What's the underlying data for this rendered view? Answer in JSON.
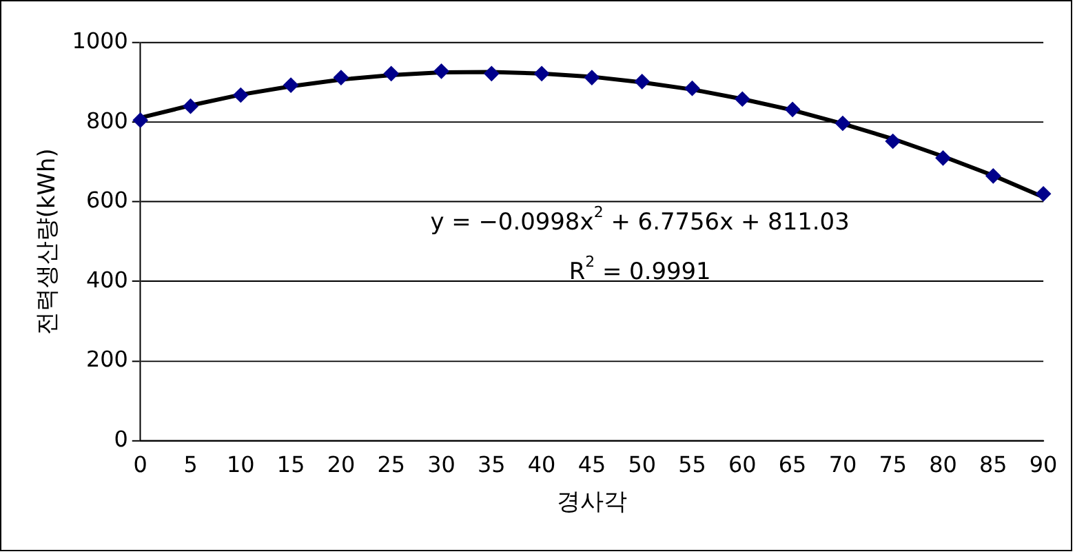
{
  "chart_data": {
    "type": "scatter",
    "ylabel": "전력생산량(kWh)",
    "xlabel": "경사각",
    "categories": [
      "0",
      "5",
      "10",
      "15",
      "20",
      "25",
      "30",
      "35",
      "40",
      "45",
      "50",
      "55",
      "60",
      "65",
      "70",
      "75",
      "80",
      "85",
      "90"
    ],
    "series": [
      {
        "color": "#00008b",
        "marker": "diamond",
        "values": [
          805,
          840,
          868,
          893,
          912,
          922,
          928,
          922,
          922,
          912,
          902,
          885,
          858,
          832,
          797,
          752,
          710,
          665,
          620
        ]
      },
      {
        "type": "line",
        "color": "#000000",
        "marker": "none",
        "line_style": "solid",
        "values": [
          811,
          842,
          869,
          890,
          907,
          918,
          925,
          926,
          922,
          914,
          900,
          882,
          858,
          830,
          796,
          758,
          714,
          666,
          612
        ]
      }
    ],
    "ylim": [
      0,
      1000
    ],
    "yticks": [
      0,
      200,
      400,
      600,
      800,
      1000
    ],
    "grid": "y",
    "legend": false,
    "annotations": [
      "y = −0.0998x$^{2}$ + 6.7756x + 811.03",
      "R$^{2}$ = 0.9991"
    ]
  }
}
